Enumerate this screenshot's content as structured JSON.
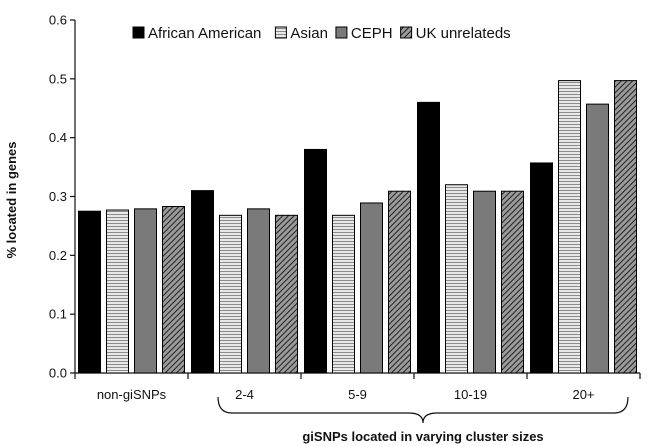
{
  "chart_data": {
    "type": "bar",
    "title": "",
    "ylabel": "% located in genes",
    "xlabel": "giSNPs located in varying cluster sizes",
    "ylim": [
      0,
      0.6
    ],
    "yticks": [
      "0.0",
      "0.1",
      "0.2",
      "0.3",
      "0.4",
      "0.5",
      "0.6"
    ],
    "categories": [
      "non-giSNPs",
      "2-4",
      "5-9",
      "10-19",
      "20+"
    ],
    "series": [
      {
        "name": "African American",
        "values": [
          0.275,
          0.31,
          0.38,
          0.46,
          0.357
        ],
        "color": "#000000",
        "pattern": "solid"
      },
      {
        "name": "Asian",
        "values": [
          0.277,
          0.268,
          0.268,
          0.32,
          0.497
        ],
        "color": "#d9d9d9",
        "pattern": "horizontal-lines"
      },
      {
        "name": "CEPH",
        "values": [
          0.279,
          0.279,
          0.289,
          0.309,
          0.457
        ],
        "color": "#7a7a7a",
        "pattern": "solid"
      },
      {
        "name": "UK unrelateds",
        "values": [
          0.283,
          0.268,
          0.309,
          0.309,
          0.497
        ],
        "color": "#555555",
        "pattern": "diagonal-hatch"
      }
    ],
    "legend_position": "top",
    "grid": false,
    "brace_under_categories": [
      "2-4",
      "5-9",
      "10-19",
      "20+"
    ]
  }
}
